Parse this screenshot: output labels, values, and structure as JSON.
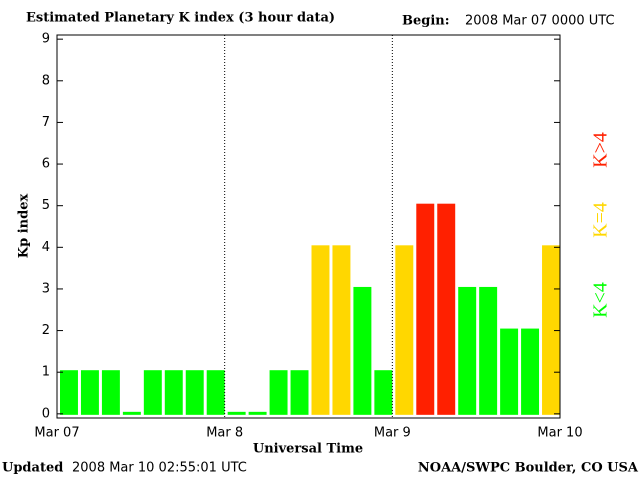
{
  "chart_data": {
    "type": "bar",
    "title": "Estimated Planetary K index (3 hour data)",
    "begin_label": "Begin:",
    "begin": "2008 Mar 07 0000 UTC",
    "y_label": "Kp index",
    "x_label": "Universal Time",
    "updated_label": "Updated",
    "updated": "2008 Mar 10 02:55:01 UTC",
    "source": "NOAA/SWPC Boulder, CO USA",
    "x": [
      0,
      3,
      6,
      9,
      12,
      15,
      18,
      21,
      24,
      27,
      30,
      33,
      36,
      39,
      42,
      45,
      48,
      51,
      54,
      57,
      60,
      63,
      66,
      69
    ],
    "values": [
      1,
      1,
      1,
      0,
      1,
      1,
      1,
      1,
      0,
      0,
      1,
      1,
      4,
      4,
      3,
      1,
      4,
      5,
      5,
      3,
      3,
      2,
      2,
      4
    ],
    "colors": [
      "#00ff00",
      "#00ff00",
      "#00ff00",
      "#00ff00",
      "#00ff00",
      "#00ff00",
      "#00ff00",
      "#00ff00",
      "#00ff00",
      "#00ff00",
      "#00ff00",
      "#00ff00",
      "#ffd700",
      "#ffd700",
      "#00ff00",
      "#00ff00",
      "#ffd700",
      "#ff2000",
      "#ff2000",
      "#00ff00",
      "#00ff00",
      "#00ff00",
      "#00ff00",
      "#ffd700"
    ],
    "legend": [
      {
        "name": "K<4",
        "color": "#00ff00"
      },
      {
        "name": "K=4",
        "color": "#ffd700"
      },
      {
        "name": "K>4",
        "color": "#ff2000"
      }
    ],
    "xlim": [
      0,
      72
    ],
    "xticks": [
      {
        "value": 0,
        "label": "Mar 07"
      },
      {
        "value": 24,
        "label": "Mar 8"
      },
      {
        "value": 48,
        "label": "Mar 9"
      },
      {
        "value": 72,
        "label": "Mar 10"
      }
    ],
    "ylim": [
      -0.1,
      9.1
    ],
    "yticks": [
      0,
      1,
      2,
      3,
      4,
      5,
      6,
      7,
      8,
      9
    ]
  }
}
